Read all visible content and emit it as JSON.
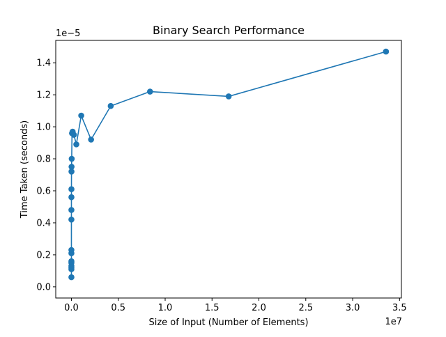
{
  "chart_data": {
    "type": "line",
    "title": "Binary Search Performance",
    "xlabel": "Size of Input (Number of Elements)",
    "ylabel": "Time Taken (seconds)",
    "x_offset_label": "1e7",
    "y_offset_label": "1e−5",
    "xlim": [
      -1670000.0,
      35200000.0
    ],
    "ylim": [
      -7e-07,
      1.54e-05
    ],
    "xticks": [
      0,
      5000000.0,
      10000000.0,
      15000000.0,
      20000000.0,
      25000000.0,
      30000000.0,
      35000000.0
    ],
    "xtick_labels": [
      "0.0",
      "0.5",
      "1.0",
      "1.5",
      "2.0",
      "2.5",
      "3.0",
      "3.5"
    ],
    "yticks": [
      0,
      2e-06,
      4e-06,
      6e-06,
      8e-06,
      1e-05,
      1.2e-05,
      1.4e-05
    ],
    "ytick_labels": [
      "0.0",
      "0.2",
      "0.4",
      "0.6",
      "0.8",
      "1.0",
      "1.2",
      "1.4"
    ],
    "grid": false,
    "legend": "none",
    "series": [
      {
        "color": "#1f77b4",
        "marker": "circle",
        "x": [
          2,
          4,
          8,
          16,
          32,
          64,
          128,
          256,
          512,
          1024,
          2048,
          4096,
          8192,
          16384,
          32768,
          65536,
          131072,
          262144,
          524288,
          1048576,
          2097152,
          4194304,
          8388608,
          16777216,
          33554432
        ],
        "y": [
          6e-07,
          1.1e-06,
          1.3e-06,
          1.5e-06,
          1.2e-06,
          1.6e-06,
          2.1e-06,
          2.3e-06,
          4.2e-06,
          4.8e-06,
          5.6e-06,
          6.1e-06,
          7.2e-06,
          7.5e-06,
          8e-06,
          9.6e-06,
          9.7e-06,
          9.5e-06,
          8.9e-06,
          1.07e-05,
          9.2e-06,
          1.13e-05,
          1.22e-05,
          1.19e-05,
          1.47e-05
        ]
      }
    ]
  }
}
